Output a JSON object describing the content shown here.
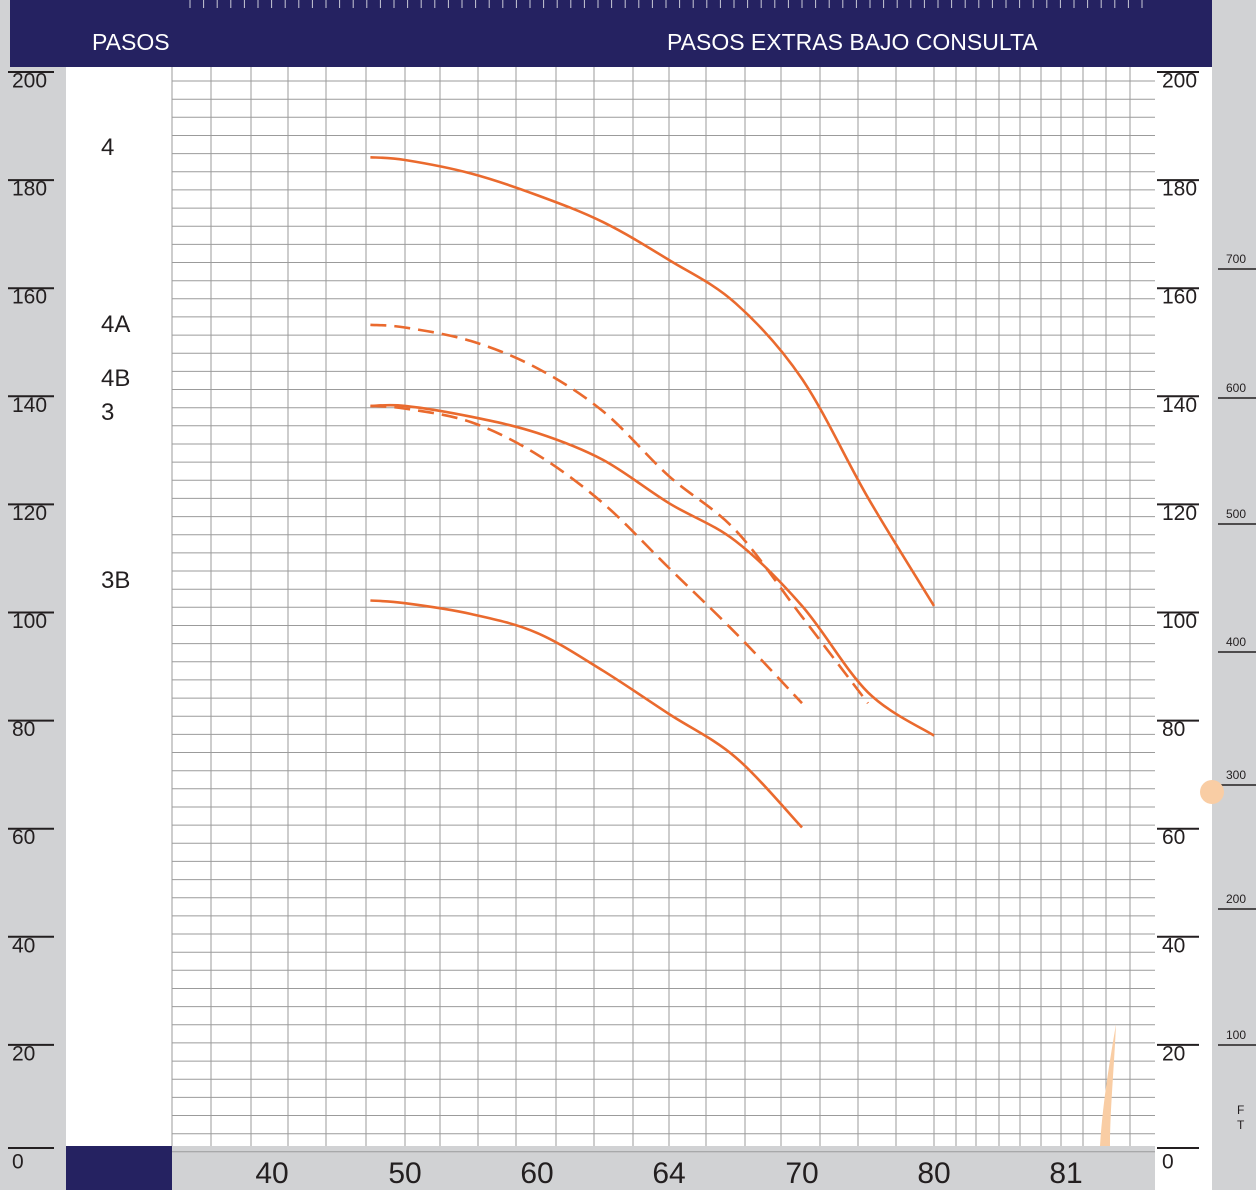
{
  "colors": {
    "header_bg": "#252261",
    "side_gray": "#d1d2d4",
    "bottom_gray": "#d1d2d4",
    "grid": "#9b9b9b",
    "curve": "#ea6a2e",
    "axis_text": "#231f20",
    "header_text": "#ffffff",
    "blob": "#f9cda4"
  },
  "header": {
    "left_label": "PASOS",
    "right_label": "PASOS EXTRAS BAJO CONSULTA"
  },
  "left_axis_labels": [
    "0",
    "20",
    "40",
    "60",
    "80",
    "100",
    "120",
    "140",
    "160",
    "180",
    "200"
  ],
  "right_axis_labels": [
    "0",
    "20",
    "40",
    "60",
    "80",
    "100",
    "120",
    "140",
    "160",
    "180",
    "200"
  ],
  "far_right_axis": {
    "labels": [
      "100",
      "200",
      "300",
      "400",
      "500",
      "600",
      "700"
    ],
    "unit_letters": [
      "F",
      "T"
    ]
  },
  "chart_data": {
    "type": "line",
    "x_ticks": [
      "40",
      "50",
      "60",
      "64",
      "70",
      "80",
      "81"
    ],
    "ylim": [
      0,
      200
    ],
    "grid": true,
    "series": [
      {
        "name": "4",
        "style": "solid",
        "points": [
          [
            0.74,
            187
          ],
          [
            1.0,
            186.5
          ],
          [
            1.5,
            184
          ],
          [
            2.0,
            180
          ],
          [
            2.5,
            175
          ],
          [
            3.0,
            168
          ],
          [
            3.5,
            160
          ],
          [
            4.0,
            146
          ],
          [
            4.5,
            124
          ],
          [
            5.0,
            104
          ]
        ]
      },
      {
        "name": "4A",
        "style": "dashed",
        "points": [
          [
            0.74,
            156
          ],
          [
            1.0,
            155.5
          ],
          [
            1.5,
            153
          ],
          [
            2.0,
            148
          ],
          [
            2.5,
            140
          ],
          [
            3.0,
            128
          ],
          [
            3.5,
            118
          ],
          [
            4.0,
            102
          ],
          [
            4.5,
            86
          ]
        ]
      },
      {
        "name": "4B",
        "style": "dashed",
        "points": [
          [
            0.74,
            141
          ],
          [
            1.0,
            140.5
          ],
          [
            1.5,
            138
          ],
          [
            2.0,
            132
          ],
          [
            2.5,
            123
          ],
          [
            3.0,
            111
          ],
          [
            3.5,
            99
          ],
          [
            4.0,
            86
          ]
        ]
      },
      {
        "name": "3",
        "style": "solid",
        "points": [
          [
            0.74,
            141
          ],
          [
            1.0,
            141
          ],
          [
            1.5,
            139
          ],
          [
            2.0,
            136
          ],
          [
            2.5,
            131
          ],
          [
            3.0,
            123
          ],
          [
            3.5,
            116
          ],
          [
            4.0,
            104
          ],
          [
            4.5,
            88
          ],
          [
            5.0,
            80
          ]
        ]
      },
      {
        "name": "3B",
        "style": "solid",
        "points": [
          [
            0.74,
            105
          ],
          [
            1.0,
            104.5
          ],
          [
            1.5,
            102.5
          ],
          [
            2.0,
            99
          ],
          [
            2.5,
            92
          ],
          [
            3.0,
            84
          ],
          [
            3.5,
            76
          ],
          [
            4.0,
            63
          ]
        ]
      }
    ]
  }
}
